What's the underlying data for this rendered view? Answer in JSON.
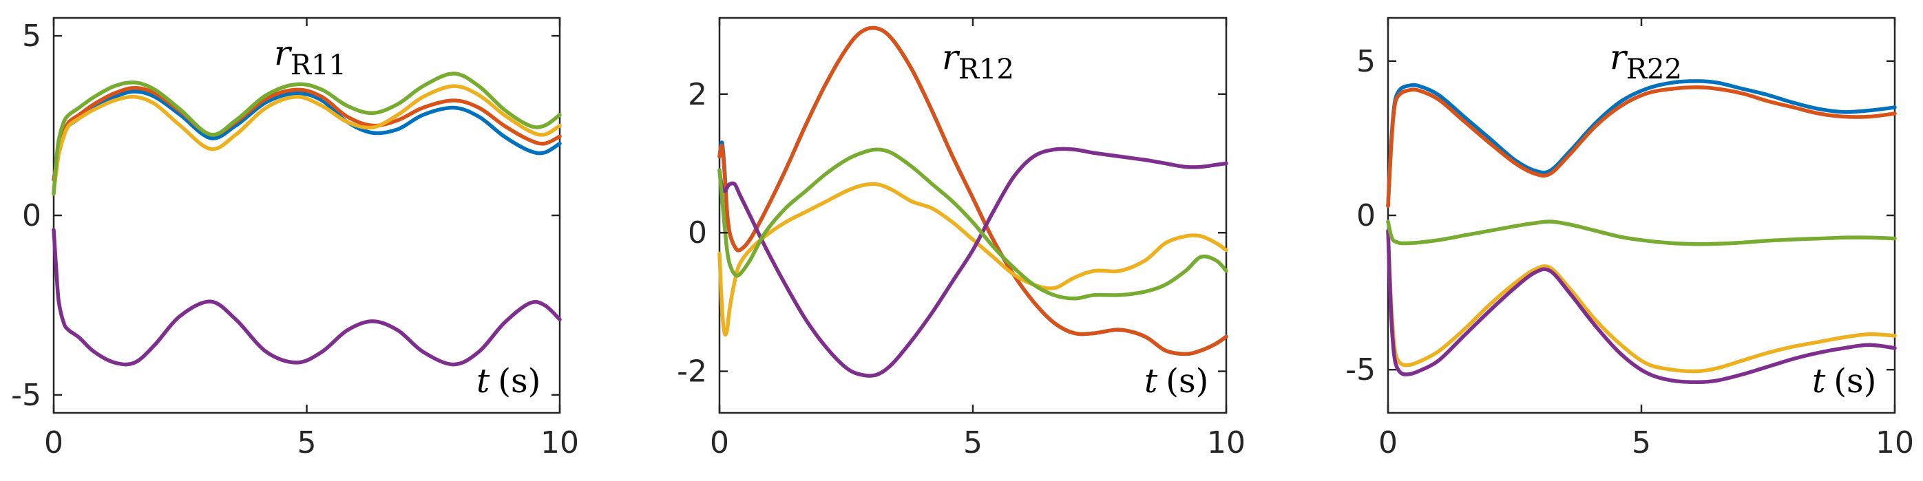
{
  "colors": [
    "#0072BD",
    "#D95319",
    "#EDB120",
    "#7E2F8E",
    "#77AC30"
  ],
  "chart_data": [
    {
      "type": "line",
      "title": "r_R11",
      "title_main": "r",
      "title_sub": "R11",
      "xlabel_var": "t",
      "xlabel_unit": "(s)",
      "xlim": [
        0,
        10
      ],
      "ylim": [
        -5.5,
        5.5
      ],
      "xticks": [
        0,
        5,
        10
      ],
      "xtick_labels": [
        "0",
        "5",
        "10"
      ],
      "yticks": [
        -5,
        0,
        5
      ],
      "ytick_labels": [
        "-5",
        "0",
        "5"
      ],
      "x": [
        0,
        0.05,
        0.1,
        0.2,
        0.3,
        0.5,
        0.8,
        1.2,
        1.6,
        2.0,
        2.5,
        3.1,
        3.6,
        4.2,
        4.8,
        5.3,
        5.8,
        6.3,
        6.8,
        7.3,
        7.9,
        8.4,
        8.9,
        9.4,
        9.7,
        10
      ],
      "series": [
        {
          "name": "blue",
          "values": [
            1.0,
            1.4,
            1.8,
            2.3,
            2.5,
            2.7,
            3.0,
            3.3,
            3.45,
            3.3,
            2.8,
            2.15,
            2.5,
            3.15,
            3.4,
            3.2,
            2.6,
            2.3,
            2.4,
            2.8,
            3.0,
            2.75,
            2.2,
            1.8,
            1.75,
            2.0
          ]
        },
        {
          "name": "orange",
          "values": [
            1.0,
            1.4,
            1.8,
            2.3,
            2.6,
            2.8,
            3.1,
            3.4,
            3.55,
            3.4,
            2.9,
            2.25,
            2.6,
            3.25,
            3.5,
            3.3,
            2.75,
            2.5,
            2.65,
            3.0,
            3.2,
            3.0,
            2.5,
            2.1,
            2.0,
            2.2
          ]
        },
        {
          "name": "yellow",
          "values": [
            0.7,
            1.2,
            1.7,
            2.2,
            2.5,
            2.7,
            2.95,
            3.2,
            3.3,
            3.1,
            2.5,
            1.85,
            2.25,
            3.0,
            3.3,
            3.05,
            2.6,
            2.45,
            2.8,
            3.3,
            3.6,
            3.35,
            2.8,
            2.35,
            2.25,
            2.5
          ]
        },
        {
          "name": "purple",
          "values": [
            -0.4,
            -1.5,
            -2.4,
            -3.0,
            -3.2,
            -3.4,
            -3.8,
            -4.1,
            -4.1,
            -3.6,
            -2.8,
            -2.4,
            -2.9,
            -3.8,
            -4.1,
            -3.8,
            -3.2,
            -2.95,
            -3.2,
            -3.8,
            -4.15,
            -3.8,
            -3.0,
            -2.45,
            -2.5,
            -2.9
          ]
        },
        {
          "name": "green",
          "values": [
            0.6,
            1.5,
            2.1,
            2.6,
            2.8,
            3.0,
            3.3,
            3.6,
            3.7,
            3.5,
            2.95,
            2.25,
            2.65,
            3.35,
            3.65,
            3.5,
            3.05,
            2.85,
            3.1,
            3.6,
            3.95,
            3.6,
            2.95,
            2.5,
            2.5,
            2.8
          ]
        }
      ]
    },
    {
      "type": "line",
      "title": "r_R12",
      "title_main": "r",
      "title_sub": "R12",
      "xlabel_var": "t",
      "xlabel_unit": "(s)",
      "xlim": [
        0,
        10
      ],
      "ylim": [
        -2.6,
        3.1
      ],
      "xticks": [
        0,
        5,
        10
      ],
      "xtick_labels": [
        "0",
        "5",
        "10"
      ],
      "yticks": [
        -2,
        0,
        2
      ],
      "ytick_labels": [
        "-2",
        "0",
        "2"
      ],
      "x": [
        0,
        0.05,
        0.1,
        0.15,
        0.2,
        0.3,
        0.4,
        0.6,
        0.9,
        1.3,
        1.7,
        2.1,
        2.5,
        2.8,
        3.1,
        3.4,
        3.8,
        4.2,
        4.6,
        5.0,
        5.4,
        5.8,
        6.2,
        6.6,
        7.0,
        7.4,
        7.9,
        8.4,
        8.8,
        9.2,
        9.5,
        9.8,
        10
      ],
      "series": [
        {
          "name": "blue",
          "values": [
            1.1,
            1.3,
            0.9,
            0.3,
            0.0,
            -0.2,
            -0.25,
            -0.1,
            0.3,
            0.9,
            1.55,
            2.15,
            2.65,
            2.9,
            2.95,
            2.8,
            2.35,
            1.75,
            1.1,
            0.5,
            -0.1,
            -0.6,
            -1.0,
            -1.3,
            -1.45,
            -1.45,
            -1.4,
            -1.5,
            -1.7,
            -1.75,
            -1.7,
            -1.6,
            -1.5
          ]
        },
        {
          "name": "orange",
          "values": [
            1.1,
            1.25,
            0.85,
            0.3,
            0.0,
            -0.2,
            -0.25,
            -0.1,
            0.3,
            0.9,
            1.55,
            2.15,
            2.65,
            2.9,
            2.95,
            2.8,
            2.35,
            1.75,
            1.1,
            0.5,
            -0.1,
            -0.6,
            -1.0,
            -1.3,
            -1.45,
            -1.45,
            -1.4,
            -1.5,
            -1.7,
            -1.75,
            -1.7,
            -1.6,
            -1.5
          ]
        },
        {
          "name": "yellow",
          "values": [
            -0.3,
            -1.1,
            -1.45,
            -1.4,
            -1.1,
            -0.7,
            -0.45,
            -0.25,
            -0.05,
            0.15,
            0.3,
            0.45,
            0.6,
            0.68,
            0.7,
            0.62,
            0.45,
            0.35,
            0.15,
            -0.1,
            -0.35,
            -0.6,
            -0.75,
            -0.8,
            -0.65,
            -0.55,
            -0.55,
            -0.4,
            -0.15,
            -0.05,
            -0.05,
            -0.15,
            -0.25
          ]
        },
        {
          "name": "purple",
          "values": [
            0.9,
            0.65,
            0.6,
            0.65,
            0.7,
            0.7,
            0.55,
            0.25,
            -0.2,
            -0.75,
            -1.25,
            -1.65,
            -1.95,
            -2.05,
            -2.05,
            -1.9,
            -1.55,
            -1.15,
            -0.7,
            -0.25,
            0.3,
            0.8,
            1.1,
            1.2,
            1.2,
            1.15,
            1.1,
            1.05,
            1.0,
            0.95,
            0.95,
            0.98,
            1.0
          ]
        },
        {
          "name": "green",
          "values": [
            0.9,
            0.5,
            0.1,
            -0.25,
            -0.45,
            -0.6,
            -0.6,
            -0.4,
            0.0,
            0.35,
            0.6,
            0.85,
            1.05,
            1.15,
            1.2,
            1.15,
            0.95,
            0.7,
            0.45,
            0.15,
            -0.2,
            -0.5,
            -0.75,
            -0.9,
            -0.95,
            -0.9,
            -0.9,
            -0.85,
            -0.75,
            -0.55,
            -0.35,
            -0.4,
            -0.55
          ]
        }
      ]
    },
    {
      "type": "line",
      "title": "r_R22",
      "title_main": "r",
      "title_sub": "R22",
      "xlabel_var": "t",
      "xlabel_unit": "(s)",
      "xlim": [
        0,
        10
      ],
      "ylim": [
        -6.4,
        6.4
      ],
      "xticks": [
        0,
        5,
        10
      ],
      "xtick_labels": [
        "0",
        "5",
        "10"
      ],
      "yticks": [
        -5,
        0,
        5
      ],
      "ytick_labels": [
        "-5",
        "0",
        "5"
      ],
      "x": [
        0,
        0.05,
        0.1,
        0.15,
        0.25,
        0.4,
        0.6,
        1.0,
        1.5,
        2.0,
        2.5,
        2.9,
        3.2,
        3.6,
        4.1,
        4.6,
        5.1,
        5.6,
        6.1,
        6.5,
        7.0,
        7.5,
        8.0,
        8.5,
        9.0,
        9.5,
        10
      ],
      "series": [
        {
          "name": "blue",
          "values": [
            0.3,
            2.0,
            3.2,
            3.8,
            4.1,
            4.2,
            4.2,
            3.9,
            3.2,
            2.5,
            1.8,
            1.45,
            1.45,
            2.1,
            3.0,
            3.7,
            4.1,
            4.3,
            4.35,
            4.3,
            4.1,
            3.9,
            3.65,
            3.45,
            3.35,
            3.4,
            3.5
          ]
        },
        {
          "name": "orange",
          "values": [
            0.3,
            1.9,
            3.1,
            3.7,
            3.95,
            4.05,
            4.05,
            3.75,
            3.05,
            2.35,
            1.7,
            1.35,
            1.35,
            2.0,
            2.9,
            3.55,
            3.95,
            4.1,
            4.15,
            4.1,
            3.95,
            3.7,
            3.5,
            3.3,
            3.2,
            3.2,
            3.3
          ]
        },
        {
          "name": "yellow",
          "values": [
            -0.5,
            -2.5,
            -3.8,
            -4.5,
            -4.8,
            -4.85,
            -4.75,
            -4.4,
            -3.7,
            -2.9,
            -2.2,
            -1.75,
            -1.7,
            -2.4,
            -3.4,
            -4.2,
            -4.8,
            -5.0,
            -5.05,
            -4.95,
            -4.7,
            -4.45,
            -4.25,
            -4.1,
            -3.95,
            -3.85,
            -3.9
          ]
        },
        {
          "name": "purple",
          "values": [
            -0.5,
            -2.8,
            -4.2,
            -4.8,
            -5.1,
            -5.15,
            -5.05,
            -4.7,
            -3.9,
            -3.1,
            -2.35,
            -1.85,
            -1.8,
            -2.55,
            -3.6,
            -4.5,
            -5.1,
            -5.35,
            -5.4,
            -5.35,
            -5.15,
            -4.9,
            -4.65,
            -4.45,
            -4.3,
            -4.2,
            -4.3
          ]
        },
        {
          "name": "green",
          "values": [
            -0.2,
            -0.6,
            -0.8,
            -0.85,
            -0.9,
            -0.9,
            -0.88,
            -0.8,
            -0.65,
            -0.5,
            -0.35,
            -0.25,
            -0.2,
            -0.3,
            -0.5,
            -0.7,
            -0.82,
            -0.9,
            -0.93,
            -0.92,
            -0.88,
            -0.82,
            -0.78,
            -0.75,
            -0.72,
            -0.72,
            -0.75
          ]
        }
      ]
    }
  ]
}
